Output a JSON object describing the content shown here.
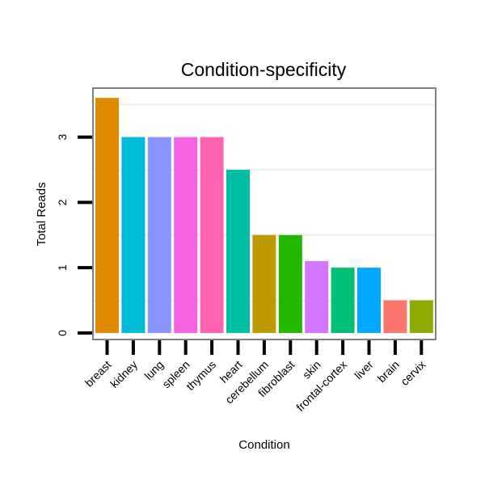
{
  "chart_data": {
    "type": "bar",
    "title": "Condition-specificity",
    "xlabel": "Condition",
    "ylabel": "Total Reads",
    "ylim": [
      -0.1,
      3.75
    ],
    "yticks": [
      0,
      1,
      2,
      3
    ],
    "grid": true,
    "legend": "none",
    "categories": [
      "breast",
      "kidney",
      "lung",
      "spleen",
      "thymus",
      "heart",
      "cerebellum",
      "fibroblast",
      "skin",
      "frontal-cortex",
      "liver",
      "brain",
      "cervix"
    ],
    "values": [
      3.6,
      3.0,
      3.0,
      3.0,
      3.0,
      2.5,
      1.5,
      1.5,
      1.1,
      1.0,
      1.0,
      0.5,
      0.5
    ],
    "colors": [
      "#E08A00",
      "#00BCD8",
      "#8C94FF",
      "#F563E3",
      "#FF62AE",
      "#00BFA5",
      "#BD9B00",
      "#22B800",
      "#D475FF",
      "#00C078",
      "#00A9FF",
      "#F8766D",
      "#8FAA00"
    ]
  }
}
